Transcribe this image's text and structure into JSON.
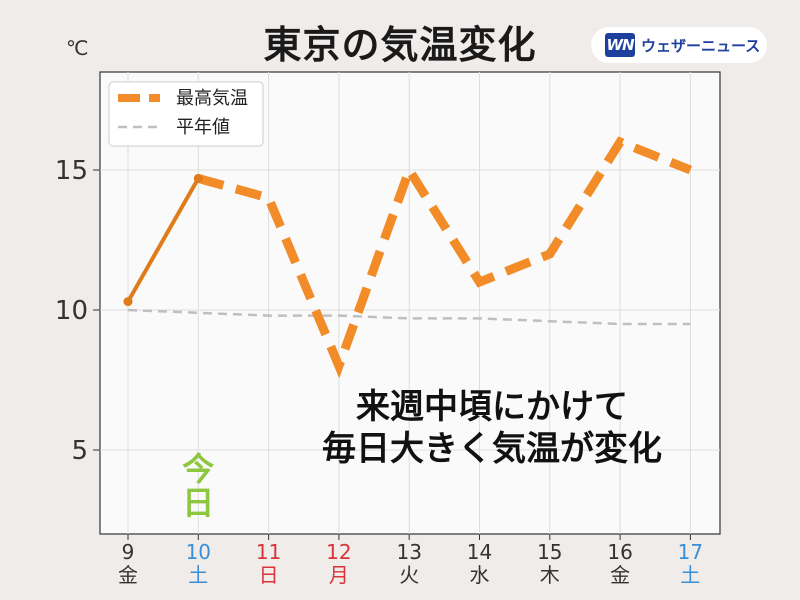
{
  "header": {
    "title": "東京の気温変化",
    "unit": "℃",
    "logo_mark": "WN",
    "logo_text": "ウェザーニュース"
  },
  "colors": {
    "actual": "#f28c28",
    "actual_solid": "#e07b1a",
    "normal": "#bfbfbf",
    "saturday": "#3a8fd6",
    "sunday_holiday": "#d9343a",
    "weekday": "#333333",
    "today": "#8dc63f"
  },
  "chart_data": {
    "type": "line",
    "title": "",
    "xlabel": "",
    "ylabel": "℃",
    "ylim": [
      2,
      18.5
    ],
    "yticks": [
      5,
      10,
      15
    ],
    "grid": true,
    "legend_position": "top-left",
    "categories": [
      {
        "day": "9",
        "weekday": "金",
        "type": "weekday"
      },
      {
        "day": "10",
        "weekday": "土",
        "type": "saturday"
      },
      {
        "day": "11",
        "weekday": "日",
        "type": "holiday"
      },
      {
        "day": "12",
        "weekday": "月",
        "type": "holiday"
      },
      {
        "day": "13",
        "weekday": "火",
        "type": "weekday"
      },
      {
        "day": "14",
        "weekday": "水",
        "type": "weekday"
      },
      {
        "day": "15",
        "weekday": "木",
        "type": "weekday"
      },
      {
        "day": "16",
        "weekday": "金",
        "type": "weekday"
      },
      {
        "day": "17",
        "weekday": "土",
        "type": "saturday"
      }
    ],
    "series": [
      {
        "name": "最高気温",
        "values": [
          10.3,
          14.7,
          14.0,
          8.0,
          15.0,
          11.0,
          12.0,
          16.0,
          15.0
        ],
        "observed_count": 2
      },
      {
        "name": "平年値",
        "values": [
          10.0,
          9.9,
          9.8,
          9.8,
          9.7,
          9.7,
          9.6,
          9.5,
          9.5
        ]
      }
    ],
    "annotation": [
      "来週中頃にかけて",
      "毎日大きく気温が変化"
    ],
    "today_label": [
      "今",
      "日"
    ],
    "today_index": 1
  }
}
